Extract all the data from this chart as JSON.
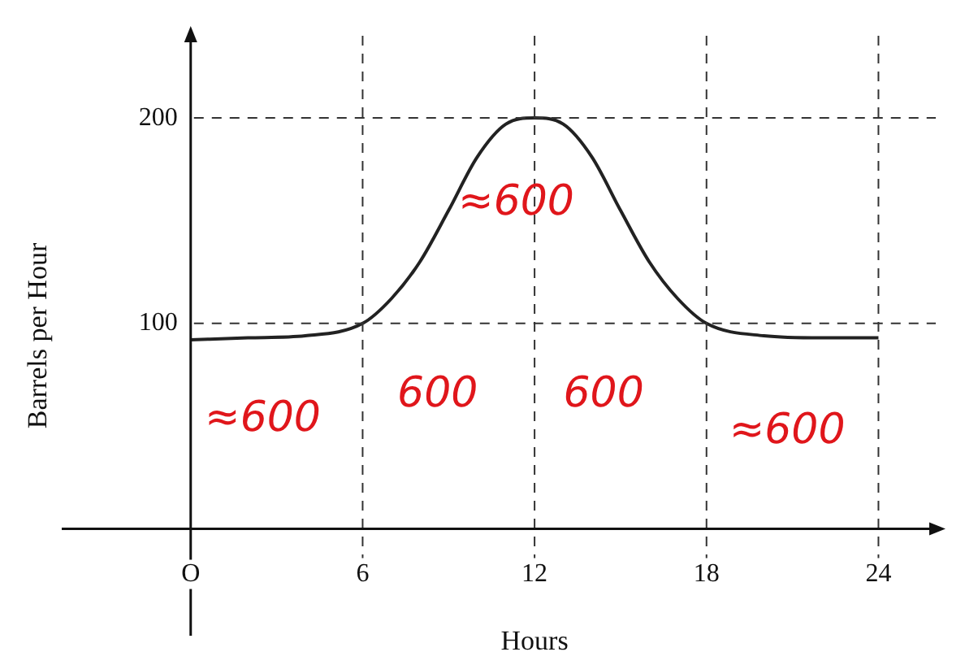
{
  "chart_data": {
    "type": "line",
    "xlabel": "Hours",
    "ylabel": "Barrels per Hour",
    "x": [
      0,
      2,
      4,
      6,
      7,
      8,
      9,
      10,
      11,
      12,
      13,
      14,
      15,
      16,
      17,
      18,
      20,
      22,
      24
    ],
    "series": [
      {
        "color": "#222222",
        "values": [
          92,
          93,
          94,
          100,
          112,
          130,
          155,
          181,
          197,
          200,
          197,
          181,
          155,
          130,
          112,
          100,
          94,
          93,
          93
        ]
      }
    ],
    "xlim": [
      -4.5,
      26
    ],
    "ylim": [
      -52,
      240
    ],
    "xticks": [
      {
        "value": 0,
        "label": "O"
      },
      6,
      12,
      18,
      24
    ],
    "yticks": [
      100,
      200
    ],
    "grid": true,
    "marker": "none",
    "line_style": "solid",
    "legend": false,
    "annotations": [
      "≈600",
      "600",
      "600",
      "≈600",
      "≈600"
    ]
  }
}
